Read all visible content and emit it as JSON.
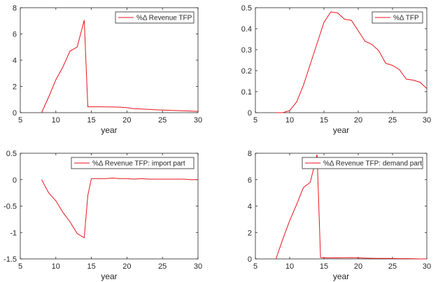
{
  "colors": {
    "series": "#e8141c",
    "axis": "#262626"
  },
  "chart_data": [
    {
      "type": "line",
      "xlabel": "year",
      "ylabel": "",
      "xlim": [
        5,
        30
      ],
      "ylim": [
        0,
        8
      ],
      "xticks": [
        5,
        10,
        15,
        20,
        25,
        30
      ],
      "yticks": [
        0,
        2,
        4,
        6,
        8
      ],
      "ytick_labels": [
        "0",
        "2",
        "4",
        "6",
        "8"
      ],
      "legend_position": "top-right",
      "series": [
        {
          "name": "%Δ Revenue TFP",
          "x": [
            8,
            9,
            10,
            11,
            12,
            13,
            14,
            14.5,
            15,
            16,
            17,
            18,
            19,
            20,
            21,
            22,
            23,
            24,
            25,
            26,
            27,
            28,
            29,
            30
          ],
          "y": [
            0,
            1.2,
            2.5,
            3.5,
            4.7,
            5.0,
            7.05,
            0.45,
            0.45,
            0.45,
            0.44,
            0.43,
            0.42,
            0.38,
            0.3,
            0.28,
            0.25,
            0.22,
            0.2,
            0.18,
            0.16,
            0.14,
            0.12,
            0.1
          ]
        }
      ]
    },
    {
      "type": "line",
      "xlabel": "year",
      "ylabel": "",
      "xlim": [
        5,
        30
      ],
      "ylim": [
        0,
        0.5
      ],
      "xticks": [
        5,
        10,
        15,
        20,
        25,
        30
      ],
      "yticks": [
        0,
        0.1,
        0.2,
        0.3,
        0.4,
        0.5
      ],
      "ytick_labels": [
        "0",
        "0.1",
        "0.2",
        "0.3",
        "0.4",
        "0.5"
      ],
      "legend_position": "top-right",
      "series": [
        {
          "name": "%Δ TFP",
          "x": [
            8,
            9,
            10,
            11,
            12,
            13,
            14,
            15,
            16,
            17,
            18,
            19,
            20,
            21,
            22,
            23,
            24,
            25,
            26,
            27,
            28,
            29,
            30
          ],
          "y": [
            0,
            0,
            0.01,
            0.05,
            0.13,
            0.23,
            0.33,
            0.43,
            0.48,
            0.475,
            0.445,
            0.44,
            0.39,
            0.34,
            0.325,
            0.295,
            0.235,
            0.225,
            0.205,
            0.16,
            0.155,
            0.145,
            0.115
          ]
        }
      ]
    },
    {
      "type": "line",
      "xlabel": "year",
      "ylabel": "",
      "xlim": [
        5,
        30
      ],
      "ylim": [
        -1.5,
        0.5
      ],
      "xticks": [
        5,
        10,
        15,
        20,
        25,
        30
      ],
      "yticks": [
        -1.5,
        -1,
        -0.5,
        0,
        0.5
      ],
      "ytick_labels": [
        "-1.5",
        "-1",
        "-0.5",
        "0",
        "0.5"
      ],
      "legend_position": "top-right",
      "series": [
        {
          "name": "%Δ Revenue TFP: import part",
          "x": [
            8,
            9,
            10,
            11,
            12,
            13,
            14,
            14.5,
            15,
            16,
            17,
            18,
            19,
            20,
            21,
            22,
            23,
            24,
            25,
            26,
            27,
            28,
            29,
            30
          ],
          "y": [
            0,
            -0.25,
            -0.4,
            -0.62,
            -0.8,
            -1.02,
            -1.1,
            -0.3,
            0.02,
            0.02,
            0.02,
            0.03,
            0.02,
            0.02,
            0.01,
            0.02,
            0.01,
            0.01,
            0.01,
            0.01,
            0.01,
            0.01,
            0.0,
            0.0
          ]
        }
      ]
    },
    {
      "type": "line",
      "xlabel": "year",
      "ylabel": "",
      "xlim": [
        5,
        30
      ],
      "ylim": [
        0,
        8
      ],
      "xticks": [
        5,
        10,
        15,
        20,
        25,
        30
      ],
      "yticks": [
        0,
        2,
        4,
        6,
        8
      ],
      "ytick_labels": [
        "0",
        "2",
        "4",
        "6",
        "8"
      ],
      "legend_position": "top-right",
      "series": [
        {
          "name": "%Δ Revenue TFP: demand part",
          "x": [
            8,
            9,
            10,
            11,
            12,
            13,
            14,
            14.5,
            15,
            16,
            17,
            18,
            19,
            20,
            21,
            22,
            23,
            24,
            25,
            26,
            27,
            28,
            29,
            30
          ],
          "y": [
            0,
            1.5,
            2.9,
            4.1,
            5.4,
            5.8,
            7.9,
            0.1,
            0.08,
            0.08,
            0.08,
            0.09,
            0.1,
            0.08,
            0.06,
            0.05,
            0.04,
            0.04,
            0.03,
            0.02,
            0.02,
            0.01,
            0.0,
            0.0
          ]
        }
      ]
    }
  ]
}
